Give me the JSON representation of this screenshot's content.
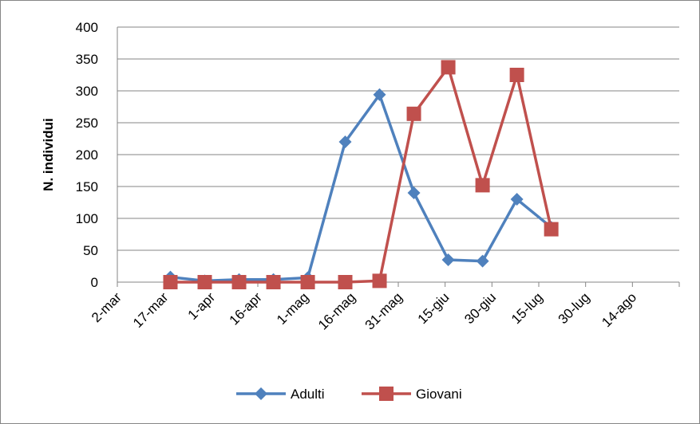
{
  "chart_data": {
    "type": "line",
    "title": "",
    "xlabel": "",
    "ylabel": "N. individui",
    "ylim": [
      0,
      400
    ],
    "yticks": [
      0,
      50,
      100,
      150,
      200,
      250,
      300,
      350,
      400
    ],
    "x_ticks": [
      "2-mar",
      "17-mar",
      "1-apr",
      "16-apr",
      "1-mag",
      "16-mag",
      "31-mag",
      "15-giu",
      "30-giu",
      "15-lug",
      "30-lug",
      "14-ago"
    ],
    "x_range": [
      "2-mar",
      "29-ago"
    ],
    "grid": true,
    "legend_position": "bottom",
    "series": [
      {
        "name": "Adulti",
        "color": "#4F81BD",
        "marker": "diamond",
        "points": [
          {
            "x": "19-mar",
            "y": 8
          },
          {
            "x": "30-mar",
            "y": 2
          },
          {
            "x": "10-apr",
            "y": 4
          },
          {
            "x": "21-apr",
            "y": 4
          },
          {
            "x": "2-mag",
            "y": 7
          },
          {
            "x": "14-mag",
            "y": 220
          },
          {
            "x": "25-mag",
            "y": 294
          },
          {
            "x": "5-giu",
            "y": 140
          },
          {
            "x": "16-giu",
            "y": 35
          },
          {
            "x": "27-giu",
            "y": 33
          },
          {
            "x": "8-lug",
            "y": 130
          },
          {
            "x": "19-lug",
            "y": 86
          }
        ]
      },
      {
        "name": "Giovani",
        "color": "#C0504D",
        "marker": "square",
        "points": [
          {
            "x": "19-mar",
            "y": 0
          },
          {
            "x": "30-mar",
            "y": 0
          },
          {
            "x": "10-apr",
            "y": 0
          },
          {
            "x": "21-apr",
            "y": 0
          },
          {
            "x": "2-mag",
            "y": 0
          },
          {
            "x": "14-mag",
            "y": 0
          },
          {
            "x": "25-mag",
            "y": 2
          },
          {
            "x": "5-giu",
            "y": 264
          },
          {
            "x": "16-giu",
            "y": 337
          },
          {
            "x": "27-giu",
            "y": 152
          },
          {
            "x": "8-lug",
            "y": 325
          },
          {
            "x": "19-lug",
            "y": 83
          }
        ]
      }
    ]
  }
}
